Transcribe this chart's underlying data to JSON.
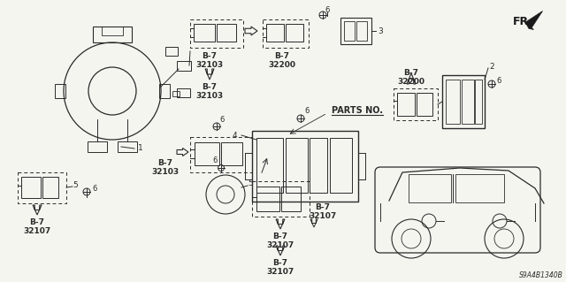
{
  "background": "#f5f5f0",
  "diagram_code": "S9A4B1340B",
  "fig_w": 6.4,
  "fig_h": 3.19,
  "dpi": 100,
  "gray": "#2a2a2a",
  "light_gray": "#888888",
  "fr_text": "FR.",
  "parts_no_text": "PARTS NO."
}
